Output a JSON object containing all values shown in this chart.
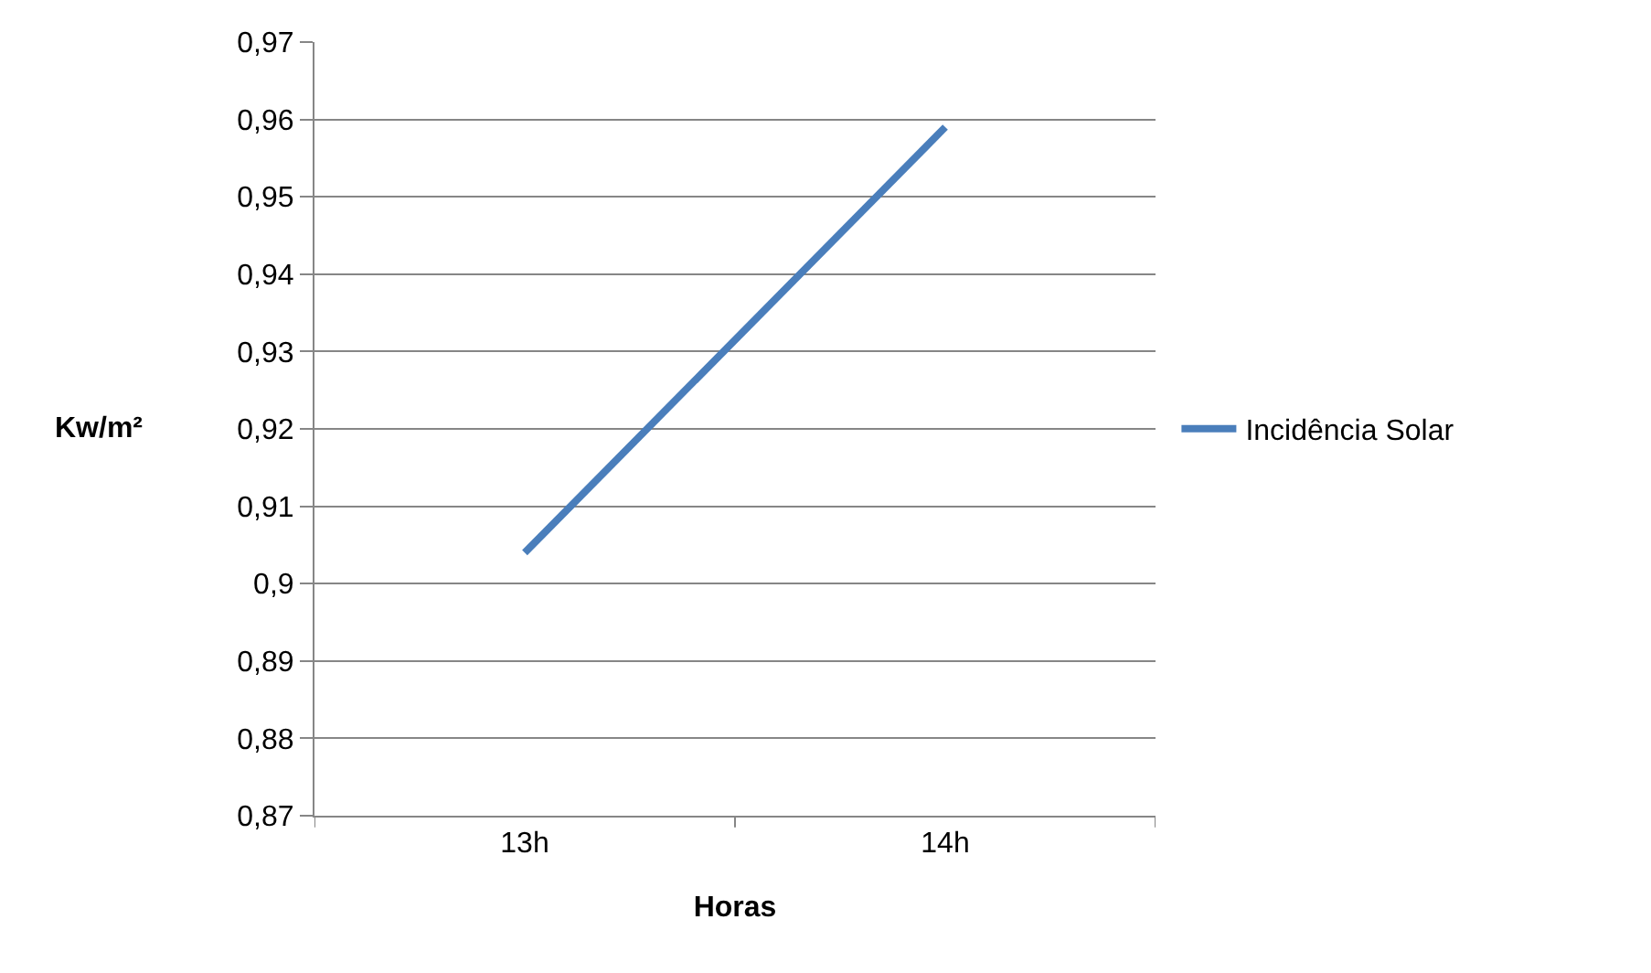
{
  "chart_data": {
    "type": "line",
    "xlabel": "Horas",
    "ylabel": "Kw/m²",
    "categories": [
      "13h",
      "14h"
    ],
    "series": [
      {
        "name": "Incidência Solar",
        "color": "#4a7ebb",
        "values": [
          0.904,
          0.959
        ]
      }
    ],
    "ylim": [
      0.87,
      0.97
    ],
    "yticks": [
      {
        "value": 0.87,
        "label": "0,87"
      },
      {
        "value": 0.88,
        "label": "0,88"
      },
      {
        "value": 0.89,
        "label": "0,89"
      },
      {
        "value": 0.9,
        "label": "0,9"
      },
      {
        "value": 0.91,
        "label": "0,91"
      },
      {
        "value": 0.92,
        "label": "0,92"
      },
      {
        "value": 0.93,
        "label": "0,93"
      },
      {
        "value": 0.94,
        "label": "0,94"
      },
      {
        "value": 0.95,
        "label": "0,95"
      },
      {
        "value": 0.96,
        "label": "0,96"
      },
      {
        "value": 0.97,
        "label": "0,97"
      }
    ],
    "grid": "y",
    "legend": "right",
    "marker": "none",
    "line_style": "solid"
  }
}
